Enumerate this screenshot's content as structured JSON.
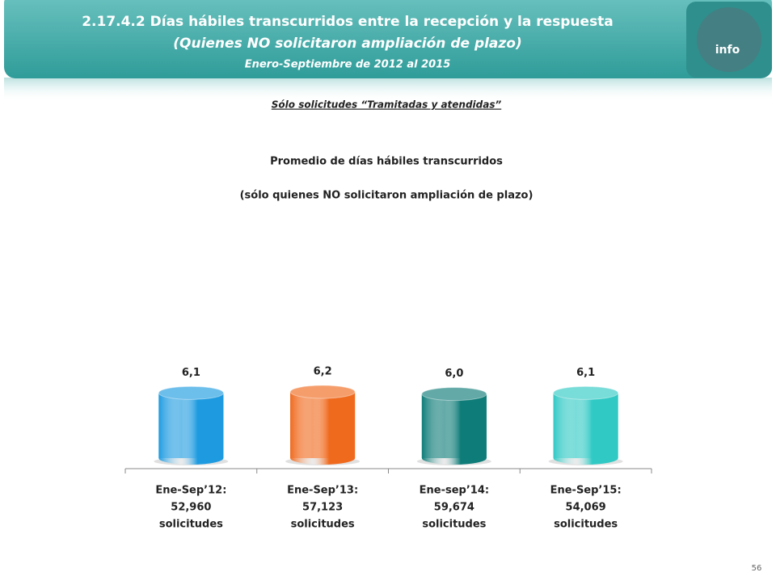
{
  "header": {
    "title": "2.17.4.2 Días hábiles transcurridos entre la recepción y la respuesta",
    "subtitle": "(Quienes NO solicitaron ampliación de plazo)",
    "period": "Enero-Septiembre de 2012 al 2015",
    "logo": "info"
  },
  "note": "Sólo solicitudes “Tramitadas y atendidas”",
  "page_number": "56",
  "chart_data": {
    "type": "bar",
    "title": "Promedio de días hábiles transcurridos",
    "subtitle": "(sólo quienes NO solicitaron ampliación  de plazo)",
    "categories": [
      [
        "Ene-Sep’12:",
        "52,960",
        "solicitudes"
      ],
      [
        "Ene-Sep’13:",
        "57,123",
        "solicitudes"
      ],
      [
        "Ene-sep’14:",
        "59,674",
        "solicitudes"
      ],
      [
        "Ene-Sep’15:",
        "54,069",
        "solicitudes"
      ]
    ],
    "values": [
      6.1,
      6.2,
      6.0,
      6.1
    ],
    "value_labels": [
      "6,1",
      "6,2",
      "6,0",
      "6,1"
    ],
    "colors": [
      "#1e9be0",
      "#f06a1e",
      "#0e7c78",
      "#30c9c4"
    ]
  }
}
